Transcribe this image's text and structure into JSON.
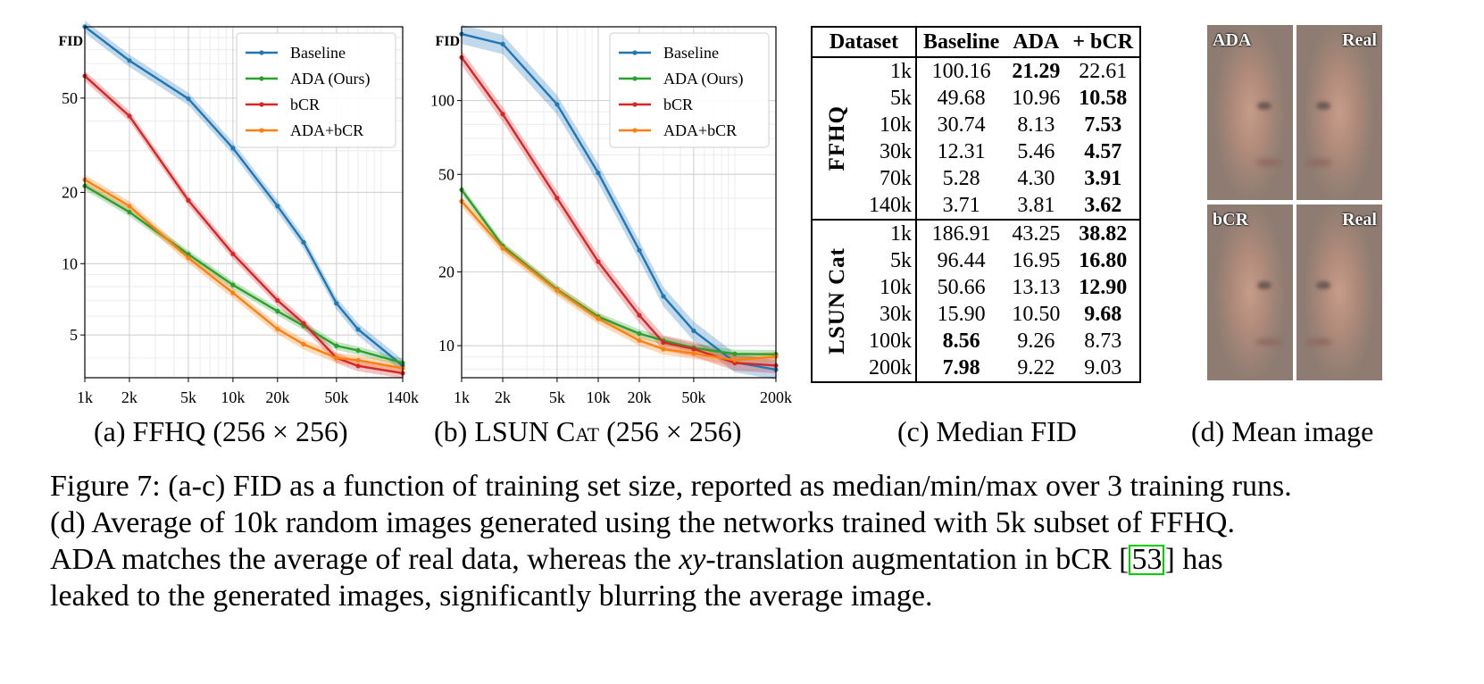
{
  "chart_data": [
    {
      "type": "line",
      "id": "ffhq",
      "ylabel": "FID",
      "yscale": "log",
      "xscale": "log",
      "xlim": [
        1000,
        140000
      ],
      "ylim": [
        3.3,
        100
      ],
      "x": [
        1000,
        2000,
        5000,
        10000,
        20000,
        30000,
        50000,
        70000,
        140000
      ],
      "xticks": [
        1000,
        2000,
        5000,
        10000,
        20000,
        50000,
        140000
      ],
      "xtick_labels": [
        "1k",
        "2k",
        "5k",
        "10k",
        "20k",
        "50k",
        "140k"
      ],
      "yticks": [
        5,
        10,
        20,
        50
      ],
      "ytick_labels": [
        "5",
        "10",
        "20",
        "50"
      ],
      "series": [
        {
          "name": "Baseline",
          "color": "#1f77b4",
          "values": [
            100.16,
            72,
            49.68,
            30.74,
            17.5,
            12.31,
            6.8,
            5.28,
            3.71
          ],
          "spread": 0.06
        },
        {
          "name": "ADA (Ours)",
          "color": "#2ca02c",
          "values": [
            21.29,
            16.5,
            10.96,
            8.13,
            6.3,
            5.46,
            4.5,
            4.3,
            3.81
          ],
          "spread": 0.04
        },
        {
          "name": "bCR",
          "color": "#d62728",
          "values": [
            62,
            42,
            18.5,
            11.0,
            7.0,
            5.6,
            4.0,
            3.7,
            3.45
          ],
          "spread": 0.05
        },
        {
          "name": "ADA+bCR",
          "color": "#ff7f0e",
          "values": [
            22.61,
            17.5,
            10.58,
            7.53,
            5.3,
            4.57,
            4.0,
            3.91,
            3.62
          ],
          "spread": 0.05
        }
      ]
    },
    {
      "type": "line",
      "id": "lsun",
      "ylabel": "FID",
      "yscale": "log",
      "xscale": "log",
      "xlim": [
        1000,
        200000
      ],
      "ylim": [
        7.4,
        200
      ],
      "x": [
        1000,
        2000,
        5000,
        10000,
        20000,
        30000,
        50000,
        100000,
        200000
      ],
      "xticks": [
        1000,
        2000,
        5000,
        10000,
        20000,
        50000,
        200000
      ],
      "xtick_labels": [
        "1k",
        "2k",
        "5k",
        "10k",
        "20k",
        "50k",
        "200k"
      ],
      "yticks": [
        10,
        20,
        50,
        100
      ],
      "ytick_labels": [
        "10",
        "20",
        "50",
        "100"
      ],
      "series": [
        {
          "name": "Baseline",
          "color": "#1f77b4",
          "values": [
            186.91,
            170,
            96.44,
            50.66,
            24.5,
            15.9,
            11.5,
            8.56,
            7.98
          ],
          "spread": 0.09
        },
        {
          "name": "ADA (Ours)",
          "color": "#2ca02c",
          "values": [
            43.25,
            25.5,
            16.95,
            13.13,
            11.2,
            10.5,
            9.8,
            9.26,
            9.22
          ],
          "spread": 0.04
        },
        {
          "name": "bCR",
          "color": "#d62728",
          "values": [
            150,
            88,
            40,
            22,
            13.3,
            10.3,
            9.7,
            8.5,
            8.3
          ],
          "spread": 0.07
        },
        {
          "name": "ADA+bCR",
          "color": "#ff7f0e",
          "values": [
            38.82,
            25,
            16.8,
            12.9,
            10.5,
            9.68,
            9.3,
            8.73,
            9.03
          ],
          "spread": 0.05
        }
      ]
    }
  ],
  "subcaptions": {
    "a": {
      "pre": "(a) FFHQ (256 × 256)"
    },
    "b": {
      "pre": "(b) LSUN ",
      "sc": "Cat",
      "post": " (256 × 256)"
    },
    "c": {
      "pre": "(c) Median FID"
    },
    "d": {
      "pre": "(d) Mean image"
    }
  },
  "table": {
    "headers": [
      "Dataset",
      "Baseline",
      "ADA",
      "+ bCR"
    ],
    "groups": [
      {
        "name": "FFHQ",
        "rows": [
          {
            "size": "1k",
            "vals": [
              "100.16",
              "21.29",
              "22.61"
            ],
            "bold": [
              false,
              true,
              false
            ]
          },
          {
            "size": "5k",
            "vals": [
              "49.68",
              "10.96",
              "10.58"
            ],
            "bold": [
              false,
              false,
              true
            ]
          },
          {
            "size": "10k",
            "vals": [
              "30.74",
              "8.13",
              "7.53"
            ],
            "bold": [
              false,
              false,
              true
            ]
          },
          {
            "size": "30k",
            "vals": [
              "12.31",
              "5.46",
              "4.57"
            ],
            "bold": [
              false,
              false,
              true
            ]
          },
          {
            "size": "70k",
            "vals": [
              "5.28",
              "4.30",
              "3.91"
            ],
            "bold": [
              false,
              false,
              true
            ]
          },
          {
            "size": "140k",
            "vals": [
              "3.71",
              "3.81",
              "3.62"
            ],
            "bold": [
              false,
              false,
              true
            ]
          }
        ]
      },
      {
        "name": "LSUN Cat",
        "rows": [
          {
            "size": "1k",
            "vals": [
              "186.91",
              "43.25",
              "38.82"
            ],
            "bold": [
              false,
              false,
              true
            ]
          },
          {
            "size": "5k",
            "vals": [
              "96.44",
              "16.95",
              "16.80"
            ],
            "bold": [
              false,
              false,
              true
            ]
          },
          {
            "size": "10k",
            "vals": [
              "50.66",
              "13.13",
              "12.90"
            ],
            "bold": [
              false,
              false,
              true
            ]
          },
          {
            "size": "30k",
            "vals": [
              "15.90",
              "10.50",
              "9.68"
            ],
            "bold": [
              false,
              false,
              true
            ]
          },
          {
            "size": "100k",
            "vals": [
              "8.56",
              "9.26",
              "8.73"
            ],
            "bold": [
              true,
              false,
              false
            ]
          },
          {
            "size": "200k",
            "vals": [
              "7.98",
              "9.22",
              "9.03"
            ],
            "bold": [
              true,
              false,
              false
            ]
          }
        ]
      }
    ]
  },
  "mean_images": {
    "top_left": "ADA",
    "top_right": "Real",
    "bottom_left": "bCR",
    "bottom_right": "Real"
  },
  "caption": {
    "line1": "Figure 7: (a-c) FID as a function of training set size, reported as median/min/max over 3 training runs.",
    "line2": "(d) Average of 10k random images generated using the networks trained with 5k subset of FFHQ.",
    "line3_pre": "ADA matches the average of real data, whereas the ",
    "line3_math": "xy",
    "line3_mid": "-translation augmentation in bCR [",
    "line3_cite": "53",
    "line3_post": "] has",
    "line4": "leaked to the generated images, significantly blurring the average image."
  }
}
